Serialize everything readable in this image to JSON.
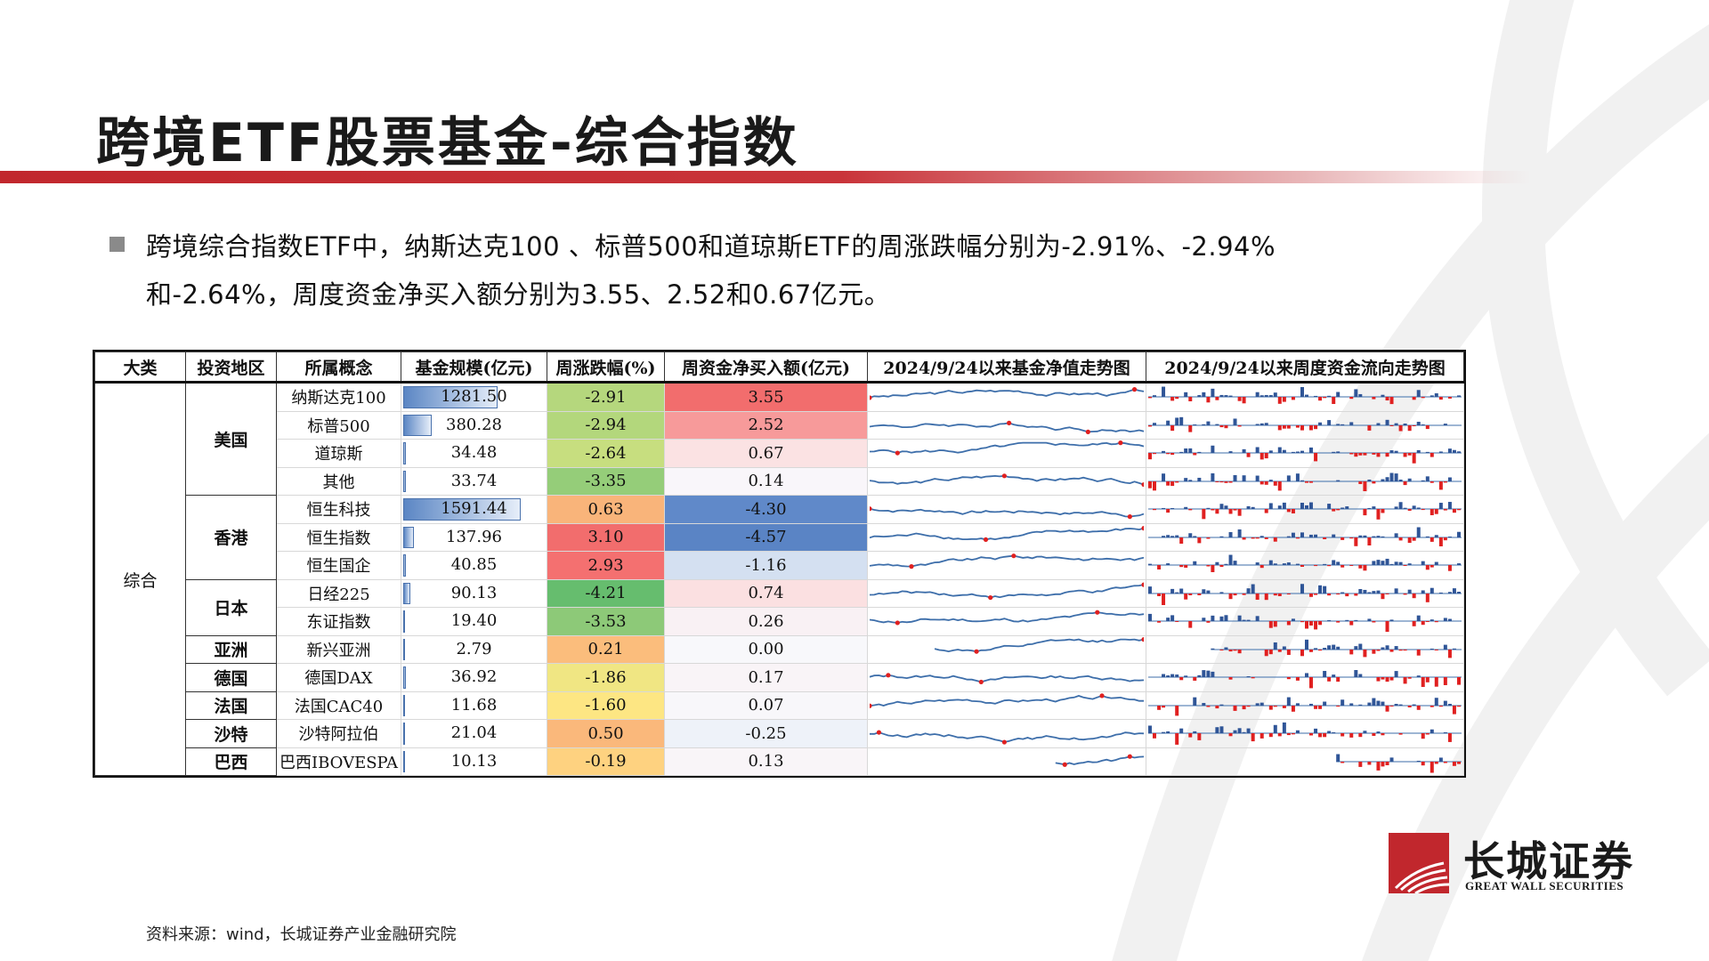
{
  "title": "跨境ETF股票基金-综合指数",
  "summary": {
    "line1": "跨境综合指数ETF中，纳斯达克100 、标普500和道琼斯ETF的周涨跌幅分别为-2.91%、-2.94%",
    "line2": "和-2.64%，周度资金净买入额分别为3.55、2.52和0.67亿元。"
  },
  "table": {
    "headers": [
      "大类",
      "投资地区",
      "所属概念",
      "基金规模(亿元)",
      "周涨跌幅(%)",
      "周资金净买入额(亿元)",
      "2024/9/24以来基金净值走势图",
      "2024/9/24以来周度资金流向走势图"
    ],
    "category": "综合",
    "regions": [
      {
        "name": "美国",
        "span": 4
      },
      {
        "name": "香港",
        "span": 3
      },
      {
        "name": "日本",
        "span": 2
      },
      {
        "name": "亚洲",
        "span": 1
      },
      {
        "name": "德国",
        "span": 1
      },
      {
        "name": "法国",
        "span": 1
      },
      {
        "name": "沙特",
        "span": 1
      },
      {
        "name": "巴西",
        "span": 1
      }
    ],
    "rows": [
      {
        "concept": "纳斯达克100",
        "size": "1281.50",
        "change": "-2.91",
        "flow": "3.55",
        "change_color": "#b5d77d",
        "flow_color": "#f26d6d",
        "size_frac": 0.805
      },
      {
        "concept": "标普500",
        "size": "380.28",
        "change": "-2.94",
        "flow": "2.52",
        "change_color": "#b3d77c",
        "flow_color": "#f79a9a",
        "size_frac": 0.239
      },
      {
        "concept": "道琼斯",
        "size": "34.48",
        "change": "-2.64",
        "flow": "0.67",
        "change_color": "#c7de7f",
        "flow_color": "#fbe2e3",
        "size_frac": 0.022
      },
      {
        "concept": "其他",
        "size": "33.74",
        "change": "-3.35",
        "flow": "0.14",
        "change_color": "#95cd79",
        "flow_color": "#f9f6fa",
        "size_frac": 0.021
      },
      {
        "concept": "恒生科技",
        "size": "1591.44",
        "change": "0.63",
        "flow": "-4.30",
        "change_color": "#f9b47a",
        "flow_color": "#6089c9",
        "size_frac": 1.0
      },
      {
        "concept": "恒生指数",
        "size": "137.96",
        "change": "3.10",
        "flow": "-4.57",
        "change_color": "#f26d6d",
        "flow_color": "#5a84c5",
        "size_frac": 0.087
      },
      {
        "concept": "恒生国企",
        "size": "40.85",
        "change": "2.93",
        "flow": "-1.16",
        "change_color": "#f47070",
        "flow_color": "#d4e0f1",
        "size_frac": 0.026
      },
      {
        "concept": "日经225",
        "size": "90.13",
        "change": "-4.21",
        "flow": "0.74",
        "change_color": "#66bd6e",
        "flow_color": "#fbe0e1",
        "size_frac": 0.057
      },
      {
        "concept": "东证指数",
        "size": "19.40",
        "change": "-3.53",
        "flow": "0.26",
        "change_color": "#8dc978",
        "flow_color": "#f9f1f4",
        "size_frac": 0.012
      },
      {
        "concept": "新兴亚洲",
        "size": "2.79",
        "change": "0.21",
        "flow": "0.00",
        "change_color": "#fbbd7c",
        "flow_color": "#f8f8fb",
        "size_frac": 0.002
      },
      {
        "concept": "德国DAX",
        "size": "36.92",
        "change": "-1.86",
        "flow": "0.17",
        "change_color": "#f0e683",
        "flow_color": "#f9f4f7",
        "size_frac": 0.023
      },
      {
        "concept": "法国CAC40",
        "size": "11.68",
        "change": "-1.60",
        "flow": "0.07",
        "change_color": "#fde683",
        "flow_color": "#f8f7fa",
        "size_frac": 0.007
      },
      {
        "concept": "沙特阿拉伯",
        "size": "21.04",
        "change": "0.50",
        "flow": "-0.25",
        "change_color": "#fab87b",
        "flow_color": "#eef2f9",
        "size_frac": 0.013
      },
      {
        "concept": "巴西IBOVESPA",
        "size": "10.13",
        "change": "-0.19",
        "flow": "0.13",
        "change_color": "#fed280",
        "flow_color": "#f9f5f8",
        "size_frac": 0.006
      }
    ]
  },
  "source": "资料来源：wind，长城证券产业金融研究院",
  "logo": {
    "cn": "长城证券",
    "en": "GREAT WALL SECURITIES",
    "color": "#c1272d"
  },
  "colors": {
    "accent": "#c1272d",
    "line": "#3d6eaa",
    "inflow": "#2f5597",
    "outflow": "#e02020"
  }
}
